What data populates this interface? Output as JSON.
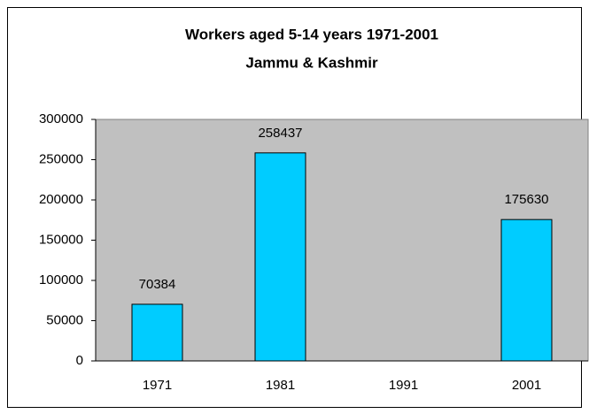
{
  "chart_data": {
    "type": "bar",
    "title": "Workers aged 5-14 years 1971-2001",
    "subtitle": "Jammu & Kashmir",
    "categories": [
      "1971",
      "1981",
      "1991",
      "2001"
    ],
    "values": [
      70384,
      258437,
      null,
      175630
    ],
    "color": "#00ccff",
    "plot_background": "#c0c0c0",
    "ylim": [
      0,
      300000
    ],
    "yticks": [
      0,
      50000,
      100000,
      150000,
      200000,
      250000,
      300000
    ],
    "grid": false
  }
}
